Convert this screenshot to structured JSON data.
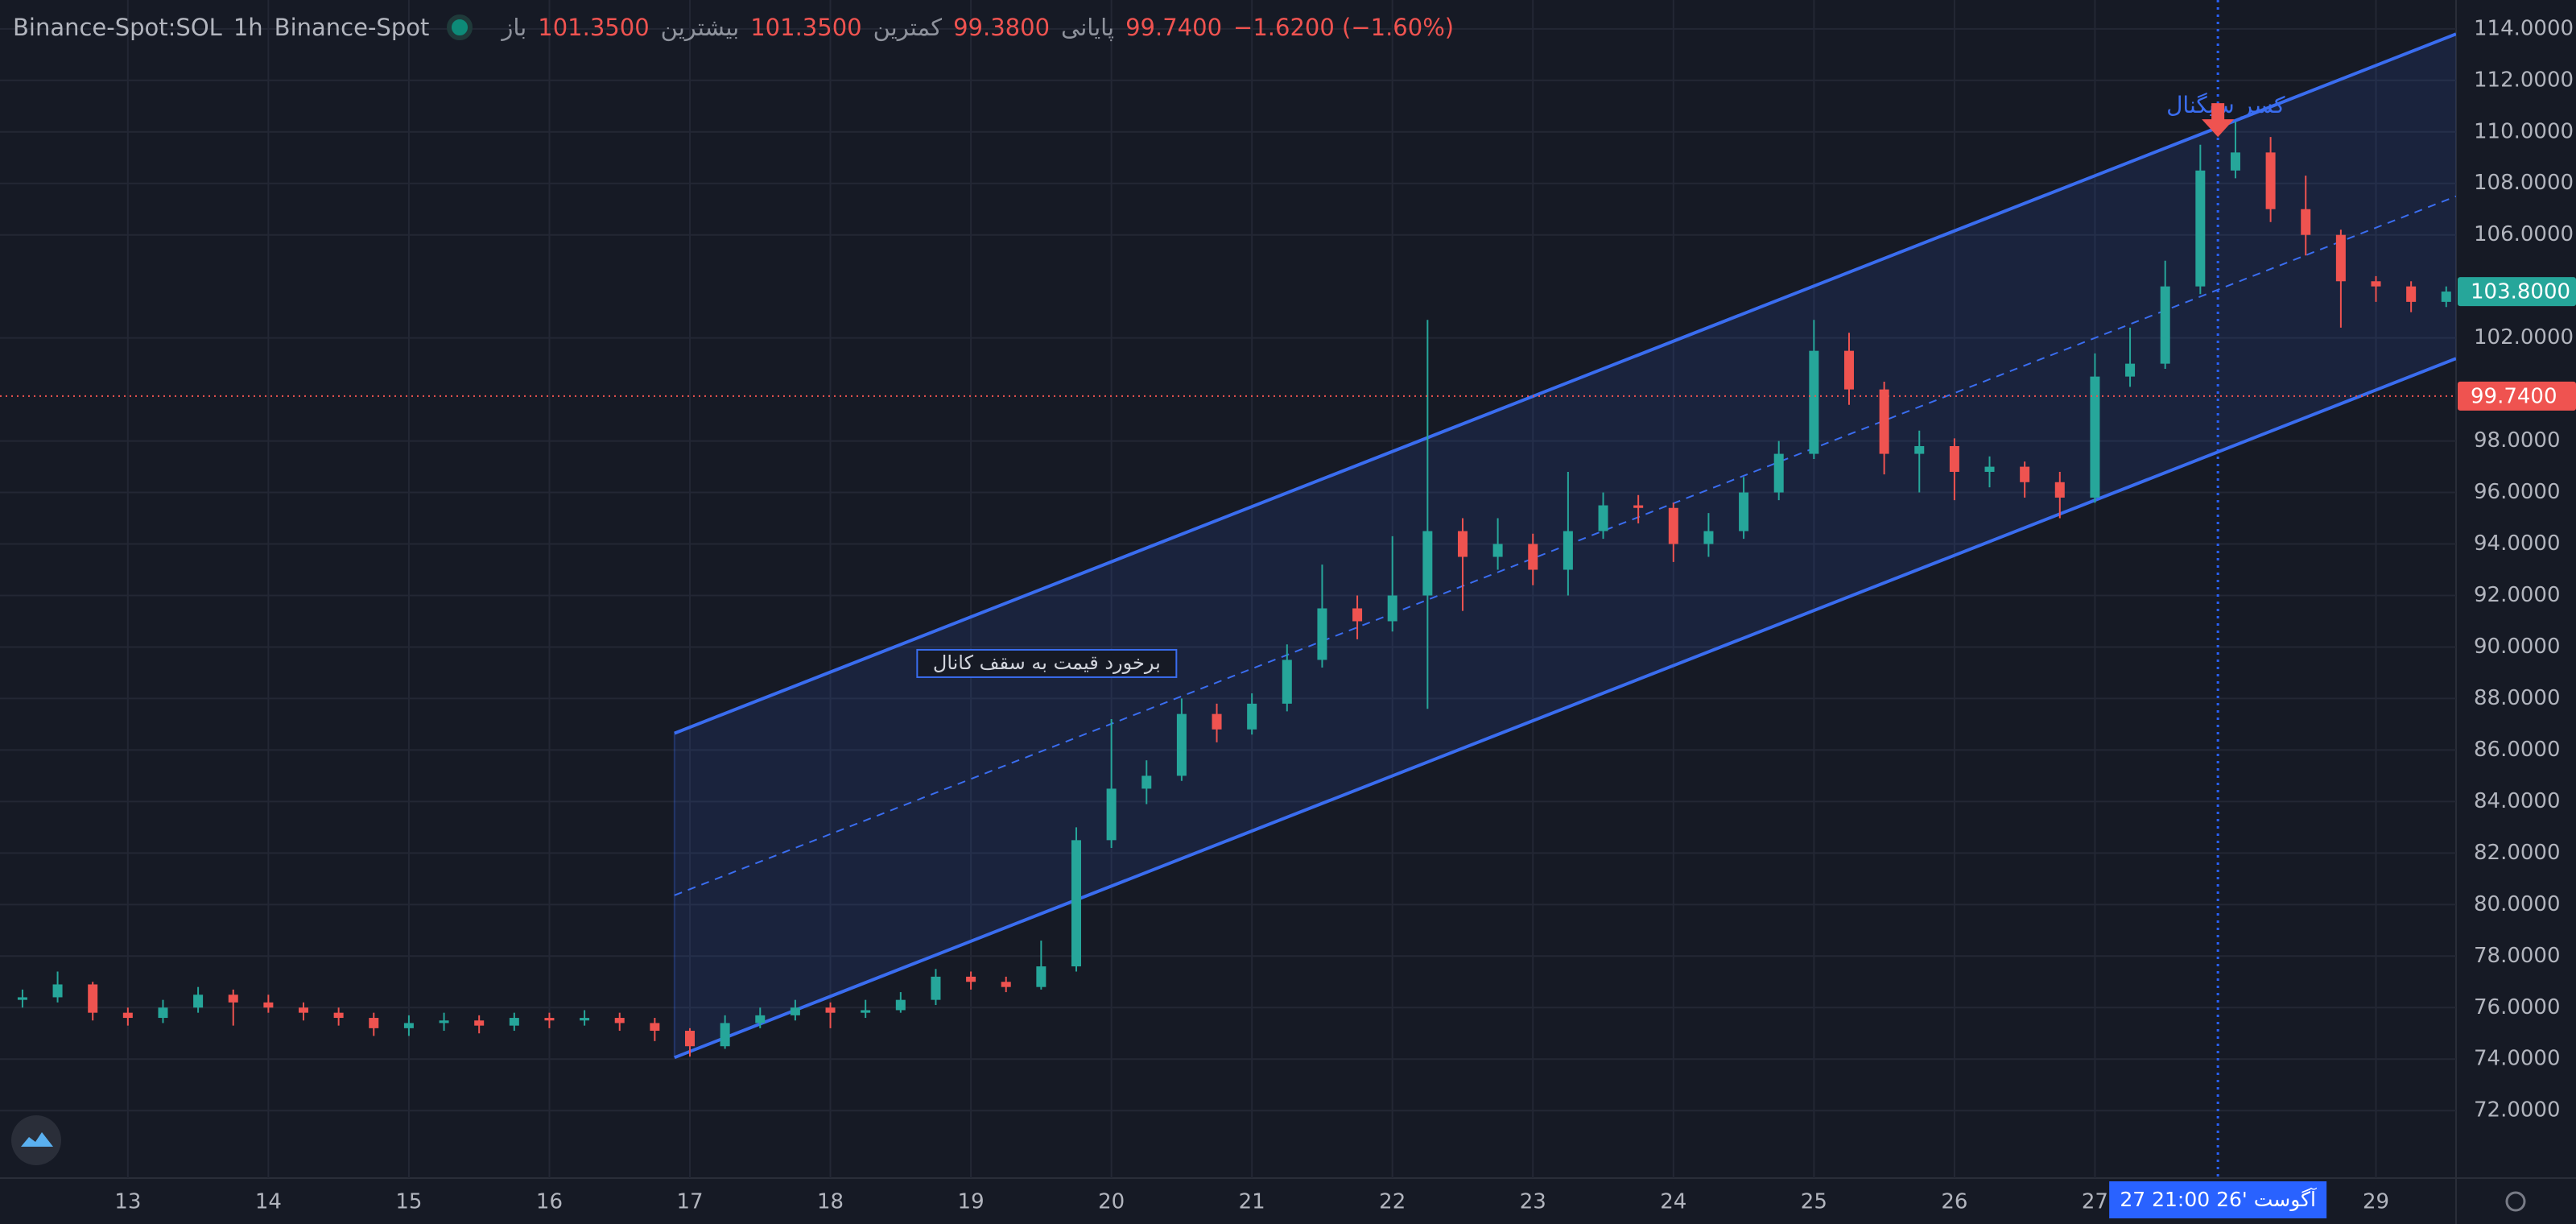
{
  "header": {
    "symbol": "Binance-Spot:SOL",
    "interval": "1h",
    "exchange": "Binance-Spot",
    "open_label": "باز",
    "open": "101.3500",
    "high_label": "بیشترین",
    "high": "101.3500",
    "low_label": "کمترین",
    "low": "99.3800",
    "close_label": "پایانی",
    "close": "99.7400",
    "change": "−1.6200 (−1.60%)"
  },
  "chart_data": {
    "type": "candlestick",
    "x": [
      12.25,
      12.5,
      12.75,
      13,
      13.25,
      13.5,
      13.75,
      14,
      14.25,
      14.5,
      14.75,
      15,
      15.25,
      15.5,
      15.75,
      16,
      16.25,
      16.5,
      16.75,
      17,
      17.25,
      17.5,
      17.75,
      18,
      18.25,
      18.5,
      18.75,
      19,
      19.25,
      19.5,
      19.75,
      20,
      20.25,
      20.5,
      20.75,
      21,
      21.25,
      21.5,
      21.75,
      22,
      22.25,
      22.5,
      22.75,
      23,
      23.25,
      23.5,
      23.75,
      24,
      24.25,
      24.5,
      24.75,
      25,
      25.25,
      25.5,
      25.75,
      26,
      26.25,
      26.5,
      26.75,
      27,
      27.25,
      27.5,
      27.75,
      28,
      28.25,
      28.5,
      28.75,
      29,
      29.25,
      29.5
    ],
    "open": [
      76.3,
      76.4,
      76.9,
      75.8,
      75.6,
      76.0,
      76.5,
      76.2,
      76.0,
      75.8,
      75.6,
      75.2,
      75.4,
      75.5,
      75.3,
      75.6,
      75.5,
      75.6,
      75.4,
      75.1,
      74.5,
      75.4,
      75.7,
      76.0,
      75.8,
      75.9,
      76.3,
      77.2,
      77.0,
      76.8,
      77.6,
      82.5,
      84.5,
      85.0,
      87.4,
      86.8,
      87.8,
      89.5,
      91.5,
      91.0,
      92.0,
      94.5,
      93.5,
      94.0,
      93.0,
      94.5,
      95.5,
      95.4,
      94.0,
      94.5,
      96.0,
      97.5,
      101.5,
      100.0,
      97.5,
      97.8,
      96.8,
      97.0,
      96.4,
      95.8,
      100.5,
      101.0,
      104.0,
      108.5,
      109.2,
      107.0,
      106.0,
      104.2,
      104.0,
      103.4
    ],
    "high": [
      76.7,
      77.4,
      77.0,
      76.0,
      76.3,
      76.8,
      76.7,
      76.5,
      76.2,
      76.0,
      75.8,
      75.7,
      75.8,
      75.7,
      75.8,
      75.8,
      75.9,
      75.8,
      75.6,
      75.2,
      75.7,
      76.0,
      76.3,
      76.2,
      76.3,
      76.6,
      77.5,
      77.4,
      77.2,
      78.6,
      83.0,
      87.2,
      85.6,
      88.0,
      87.8,
      88.2,
      90.1,
      93.2,
      92.0,
      94.3,
      102.7,
      95.0,
      95.0,
      94.4,
      96.8,
      96.0,
      95.9,
      95.6,
      95.2,
      96.6,
      98.0,
      102.7,
      102.2,
      100.3,
      98.4,
      98.1,
      97.4,
      97.2,
      96.8,
      101.4,
      102.4,
      105.0,
      109.5,
      110.4,
      109.8,
      108.3,
      106.2,
      104.4,
      104.2,
      104.0
    ],
    "low": [
      76.0,
      76.2,
      75.5,
      75.3,
      75.4,
      75.8,
      75.3,
      75.8,
      75.5,
      75.3,
      74.9,
      74.9,
      75.1,
      75.0,
      75.1,
      75.2,
      75.3,
      75.1,
      74.7,
      74.1,
      74.4,
      75.2,
      75.5,
      75.2,
      75.6,
      75.8,
      76.1,
      76.7,
      76.6,
      76.7,
      77.4,
      82.2,
      83.9,
      84.8,
      86.3,
      86.6,
      87.5,
      89.2,
      90.3,
      90.6,
      87.6,
      91.4,
      93.0,
      92.4,
      92.0,
      94.2,
      94.8,
      93.3,
      93.5,
      94.2,
      95.7,
      97.3,
      99.4,
      96.7,
      96.0,
      95.7,
      96.2,
      95.8,
      95.0,
      95.6,
      100.1,
      100.8,
      103.7,
      108.2,
      106.5,
      105.2,
      102.4,
      103.4,
      103.0,
      103.2
    ],
    "close": [
      76.4,
      76.9,
      75.8,
      75.6,
      76.0,
      76.5,
      76.2,
      76.0,
      75.8,
      75.6,
      75.2,
      75.4,
      75.5,
      75.3,
      75.6,
      75.5,
      75.6,
      75.4,
      75.1,
      74.5,
      75.4,
      75.7,
      76.0,
      75.8,
      75.9,
      76.3,
      77.2,
      77.0,
      76.8,
      77.6,
      82.5,
      84.5,
      85.0,
      87.4,
      86.8,
      87.8,
      89.5,
      91.5,
      91.0,
      92.0,
      94.5,
      93.5,
      94.0,
      93.0,
      94.5,
      95.5,
      95.4,
      94.0,
      94.5,
      96.0,
      97.5,
      101.5,
      100.0,
      97.5,
      97.8,
      96.8,
      97.0,
      96.4,
      95.8,
      100.5,
      101.0,
      104.0,
      108.5,
      109.2,
      107.0,
      106.0,
      104.2,
      104.0,
      103.4,
      103.8
    ],
    "up_color": "#26a69a",
    "down_color": "#ef5350",
    "xlim": [
      12.09,
      29.57
    ],
    "xticks": [
      13,
      14,
      15,
      16,
      17,
      18,
      19,
      20,
      21,
      22,
      23,
      24,
      25,
      26,
      27,
      29
    ],
    "ylim": [
      69.38,
      115.12
    ],
    "yticks": [
      {
        "value": 72,
        "label": "72.0000"
      },
      {
        "value": 74,
        "label": "74.0000"
      },
      {
        "value": 76,
        "label": "76.0000"
      },
      {
        "value": 78,
        "label": "78.0000"
      },
      {
        "value": 80,
        "label": "80.0000"
      },
      {
        "value": 82,
        "label": "82.0000"
      },
      {
        "value": 84,
        "label": "84.0000"
      },
      {
        "value": 86,
        "label": "86.0000"
      },
      {
        "value": 88,
        "label": "88.0000"
      },
      {
        "value": 90,
        "label": "90.0000"
      },
      {
        "value": 92,
        "label": "92.0000"
      },
      {
        "value": 94,
        "label": "94.0000"
      },
      {
        "value": 96,
        "label": "96.0000"
      },
      {
        "value": 98,
        "label": "98.0000"
      },
      {
        "value": 102,
        "label": "102.0000"
      },
      {
        "value": 106,
        "label": "106.0000"
      },
      {
        "value": 108,
        "label": "108.0000"
      },
      {
        "value": 110,
        "label": "110.0000"
      },
      {
        "value": 112,
        "label": "112.0000"
      },
      {
        "value": 114,
        "label": "114.0000"
      }
    ],
    "grid": true,
    "channel": {
      "x": [
        16.89,
        29.57
      ],
      "upper": [
        86.65,
        113.8
      ],
      "middle": [
        80.36,
        107.5
      ],
      "lower": [
        74.06,
        101.2
      ],
      "color": "#3a6df0"
    },
    "price_lines": [
      {
        "value": 99.74,
        "label": "99.7400",
        "color": "#ef5350",
        "dotted": true
      },
      {
        "value": 103.8,
        "label": "103.8000",
        "color": "#26a69a",
        "dotted": false
      }
    ],
    "crosshair": {
      "x": 27.875,
      "label": "27 آگوست '26  21:00",
      "color": "#2962ff"
    },
    "annotations": [
      {
        "x": 19.54,
        "y": 89.36,
        "text": "برخورد قیمت به سقف کانال",
        "boxed": true
      },
      {
        "x": 27.93,
        "y": 111.0,
        "text": "کسر سیگنال",
        "boxed": false
      }
    ],
    "signal": {
      "x": 27.875,
      "y": 109.8,
      "color": "#ef5350"
    }
  }
}
